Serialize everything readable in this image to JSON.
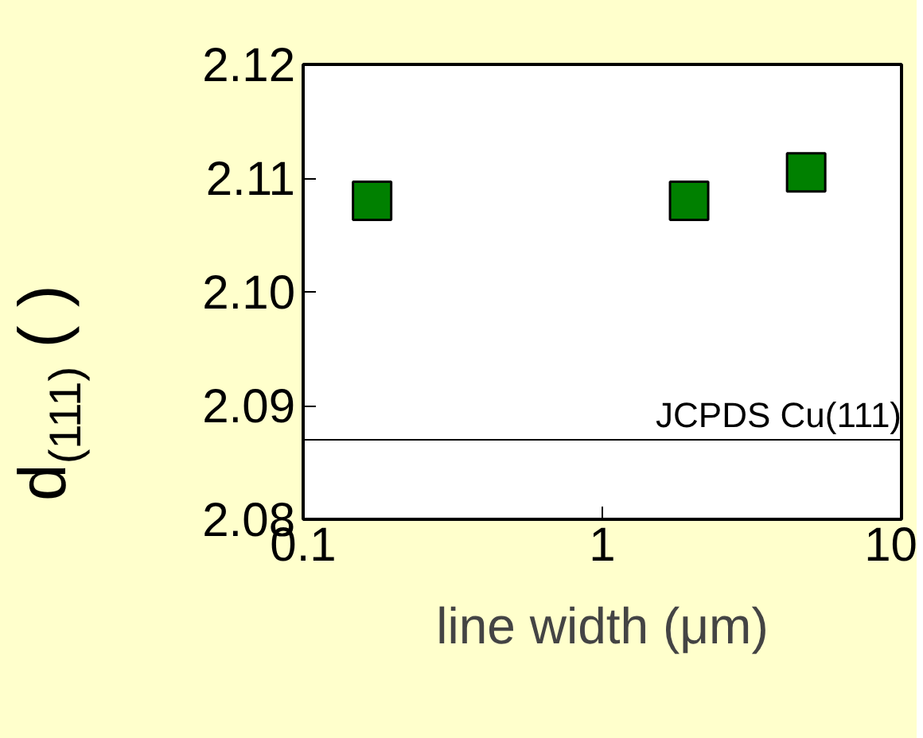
{
  "chart_data": {
    "type": "scatter",
    "xlabel": "line width (μm)",
    "ylabel": "d$_{(111)}$ ( )",
    "x": [
      0.17,
      1.95,
      4.8
    ],
    "series": [
      {
        "color": "#008000",
        "values": [
          2.108,
          2.108,
          2.1105
        ]
      }
    ],
    "marker": "square",
    "log": "x",
    "xlim": [
      0.1,
      10
    ],
    "xticks": [
      0.1,
      1,
      10
    ],
    "ylim": [
      2.08,
      2.12
    ],
    "yticks": [
      2.08,
      2.09,
      {
        "value": 2.1,
        "label": "2.10"
      },
      2.11,
      2.12
    ],
    "ref_lines": [
      {
        "axis": "y",
        "value": 2.087,
        "label": "JCPDS Cu(111)",
        "color": "#000000"
      }
    ],
    "grid": false
  }
}
